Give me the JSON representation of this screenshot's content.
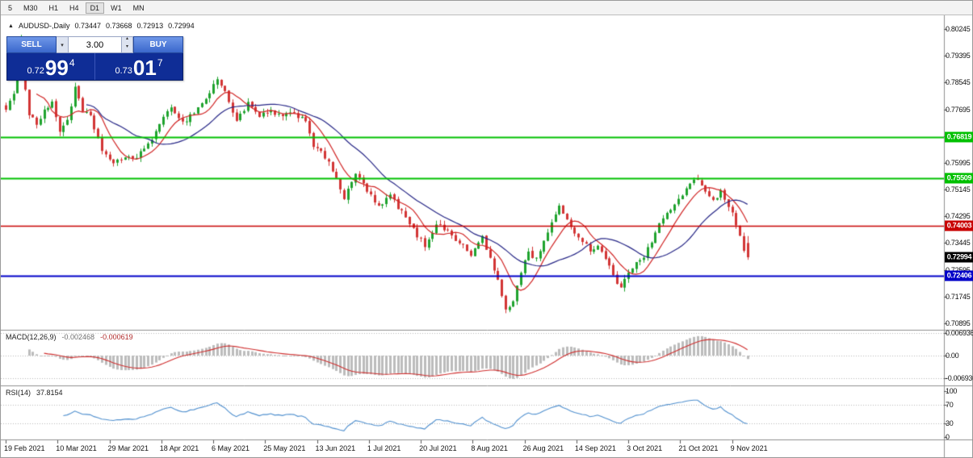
{
  "toolbar": {
    "timeframes": [
      "5",
      "M30",
      "H1",
      "H4",
      "D1",
      "W1",
      "MN"
    ],
    "selected": "D1"
  },
  "chart": {
    "symbol_header": {
      "icon": "up-triangle",
      "title": "AUDUSD-,Daily",
      "open": "0.73447",
      "high": "0.73668",
      "low": "0.72913",
      "close": "0.72994"
    },
    "trade_panel": {
      "sell_label": "SELL",
      "buy_label": "BUY",
      "volume": "3.00",
      "sell_price": {
        "main": "0.72",
        "big": "99",
        "sup": "4"
      },
      "buy_price": {
        "main": "0.73",
        "big": "01",
        "sup": "7"
      }
    },
    "price_axis": [
      "0.80245",
      "0.79395",
      "0.78545",
      "0.77695",
      "0.76845",
      "0.75995",
      "0.75145",
      "0.74295",
      "0.73445",
      "0.72595",
      "0.71745",
      "0.70895"
    ],
    "levels": [
      {
        "price": 0.76819,
        "label": "0.76819",
        "color": "#00c000",
        "lw": 2
      },
      {
        "price": 0.75509,
        "label": "0.75509",
        "color": "#00c000",
        "lw": 2
      },
      {
        "price": 0.74003,
        "label": "0.74003",
        "color": "#c80000",
        "lw": 1.5
      },
      {
        "price": 0.72406,
        "label": "0.72406",
        "color": "#0000c8",
        "lw": 2
      }
    ],
    "current_price": {
      "value": 0.72994,
      "label": "0.72994",
      "color": "#000000"
    }
  },
  "macd": {
    "label": "MACD(12,26,9)",
    "value_main": "-0.002468",
    "value_signal": "-0.000619",
    "axis": [
      "0.006936",
      "0.00",
      "-0.006936"
    ],
    "colors": {
      "hist": "#bcbcbc",
      "signal": "#cf2e2e"
    }
  },
  "rsi": {
    "label": "RSI(14)",
    "value": "37.8154",
    "axis": [
      "100",
      "70",
      "30",
      "0"
    ],
    "levels": [
      70,
      30
    ],
    "color": "#4f8fce"
  },
  "date_axis": [
    "19 Feb 2021",
    "10 Mar 2021",
    "29 Mar 2021",
    "18 Apr 2021",
    "6 May 2021",
    "25 May 2021",
    "13 Jun 2021",
    "1 Jul 2021",
    "20 Jul 2021",
    "8 Aug 2021",
    "26 Aug 2021",
    "14 Sep 2021",
    "3 Oct 2021",
    "21 Oct 2021",
    "9 Nov 2021"
  ],
  "chart_data": {
    "type": "candlestick",
    "symbol": "AUDUSD",
    "timeframe": "Daily",
    "candle_count": 194,
    "y_axis_range": [
      0.70895,
      0.80245
    ],
    "last_candle": {
      "open": 0.73447,
      "high": 0.73668,
      "low": 0.72913,
      "close": 0.72994
    },
    "price_anchors": [
      [
        0,
        0.7775
      ],
      [
        2,
        0.7812
      ],
      [
        3,
        0.7886
      ],
      [
        4,
        0.7998
      ],
      [
        5,
        0.7838
      ],
      [
        6,
        0.7756
      ],
      [
        8,
        0.7722
      ],
      [
        10,
        0.7768
      ],
      [
        12,
        0.7786
      ],
      [
        14,
        0.7702
      ],
      [
        16,
        0.7736
      ],
      [
        18,
        0.7834
      ],
      [
        20,
        0.7762
      ],
      [
        22,
        0.7744
      ],
      [
        25,
        0.7642
      ],
      [
        28,
        0.7592
      ],
      [
        31,
        0.7622
      ],
      [
        34,
        0.7612
      ],
      [
        37,
        0.7662
      ],
      [
        40,
        0.7716
      ],
      [
        43,
        0.7782
      ],
      [
        46,
        0.7726
      ],
      [
        49,
        0.7762
      ],
      [
        52,
        0.7802
      ],
      [
        55,
        0.7868
      ],
      [
        57,
        0.7822
      ],
      [
        60,
        0.7736
      ],
      [
        63,
        0.7786
      ],
      [
        66,
        0.7746
      ],
      [
        69,
        0.7762
      ],
      [
        72,
        0.7746
      ],
      [
        75,
        0.7756
      ],
      [
        78,
        0.7736
      ],
      [
        80,
        0.7656
      ],
      [
        83,
        0.7616
      ],
      [
        86,
        0.7556
      ],
      [
        88,
        0.7482
      ],
      [
        91,
        0.7566
      ],
      [
        94,
        0.7512
      ],
      [
        97,
        0.7456
      ],
      [
        100,
        0.7496
      ],
      [
        103,
        0.7442
      ],
      [
        106,
        0.7386
      ],
      [
        109,
        0.7336
      ],
      [
        112,
        0.7406
      ],
      [
        115,
        0.7382
      ],
      [
        118,
        0.7346
      ],
      [
        121,
        0.7306
      ],
      [
        124,
        0.7366
      ],
      [
        126,
        0.7292
      ],
      [
        128,
        0.7226
      ],
      [
        130,
        0.7126
      ],
      [
        132,
        0.7162
      ],
      [
        134,
        0.7256
      ],
      [
        136,
        0.7316
      ],
      [
        138,
        0.7292
      ],
      [
        140,
        0.7356
      ],
      [
        142,
        0.7406
      ],
      [
        144,
        0.7456
      ],
      [
        146,
        0.7426
      ],
      [
        148,
        0.7372
      ],
      [
        150,
        0.7356
      ],
      [
        152,
        0.7322
      ],
      [
        154,
        0.7336
      ],
      [
        156,
        0.7292
      ],
      [
        158,
        0.7246
      ],
      [
        160,
        0.7196
      ],
      [
        162,
        0.7256
      ],
      [
        164,
        0.7286
      ],
      [
        166,
        0.7306
      ],
      [
        168,
        0.7346
      ],
      [
        170,
        0.7406
      ],
      [
        172,
        0.7436
      ],
      [
        174,
        0.7472
      ],
      [
        176,
        0.7492
      ],
      [
        178,
        0.7532
      ],
      [
        180,
        0.7549
      ],
      [
        182,
        0.7512
      ],
      [
        184,
        0.7483
      ],
      [
        186,
        0.7506
      ],
      [
        188,
        0.7462
      ],
      [
        190,
        0.7408
      ],
      [
        191,
        0.7368
      ],
      [
        192,
        0.7318
      ],
      [
        193,
        0.72994
      ]
    ],
    "ma_periods": [
      8,
      21
    ],
    "colors": {
      "up": "#1fa32e",
      "down": "#d23535",
      "ma_fast": "#d02424",
      "ma_slow": "#262686"
    }
  }
}
